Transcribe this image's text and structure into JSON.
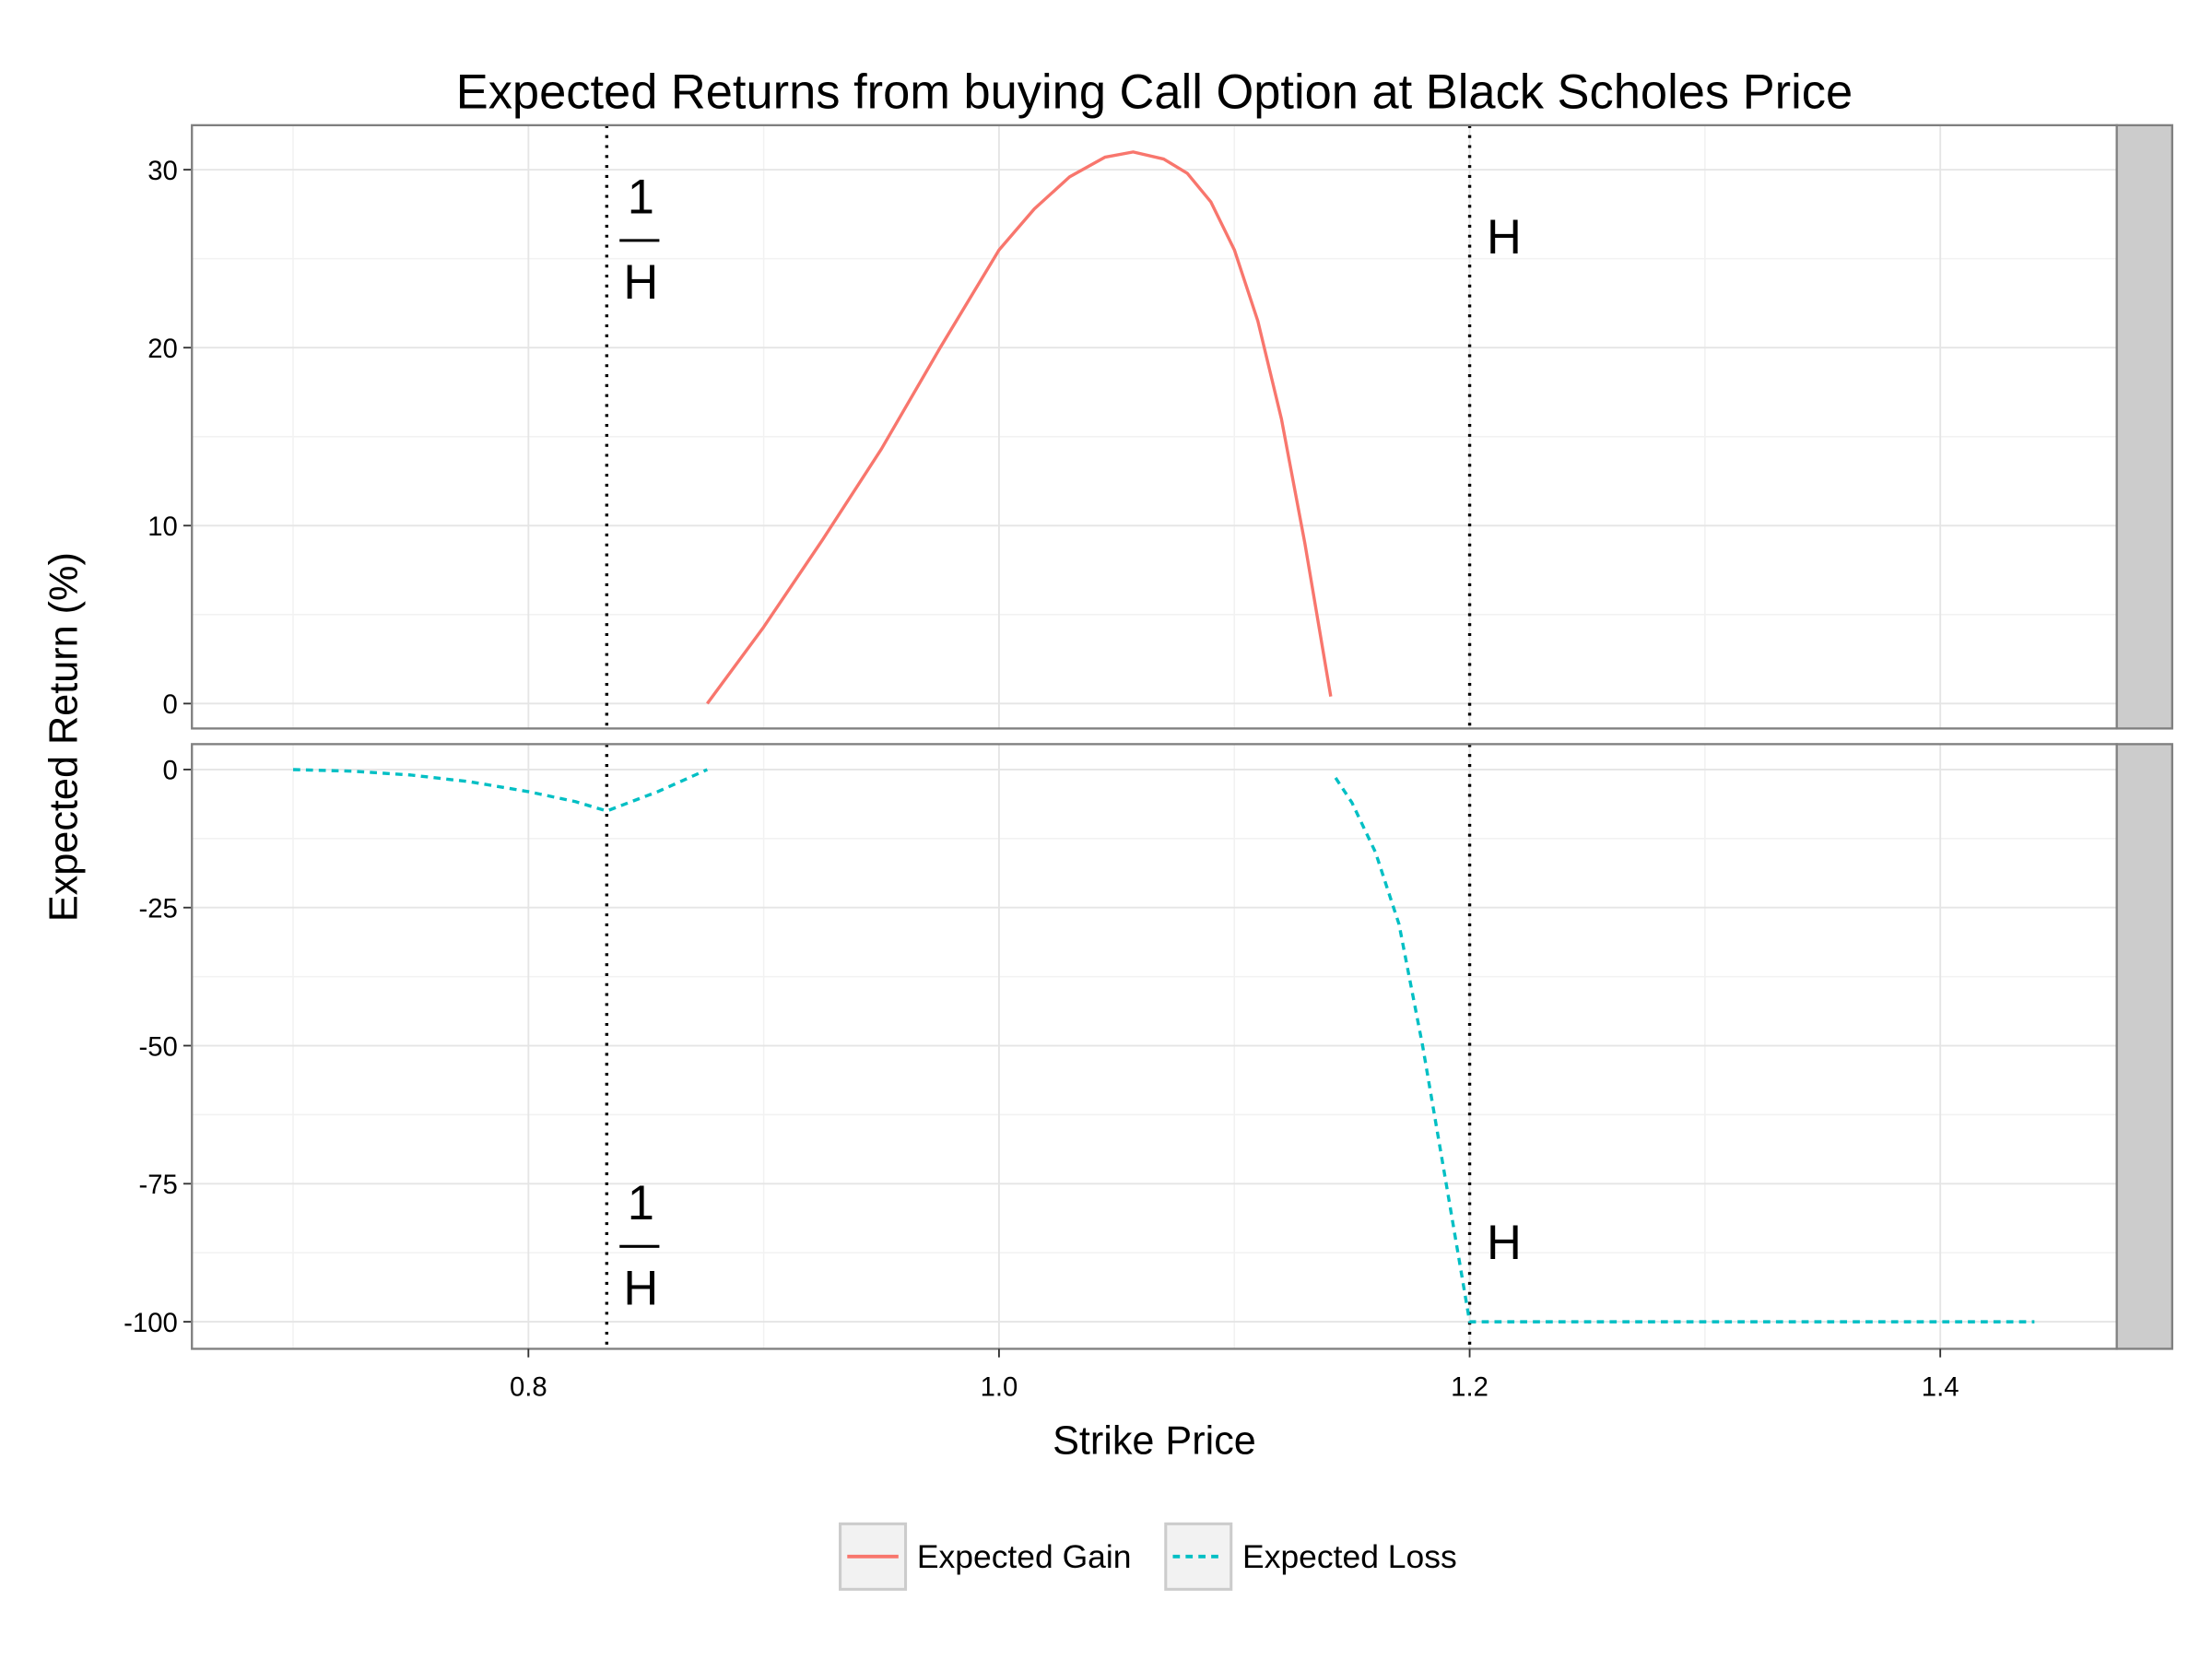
{
  "chart_data": {
    "type": "line",
    "title": "Expected Returns from buying Call Option at Black Scholes Price",
    "xlabel": "Strike Price",
    "ylabel": "Expected Return (%)",
    "xlim": [
      0.657,
      1.475
    ],
    "x_ticks": [
      "0.8",
      "1.0",
      "1.2",
      "1.4"
    ],
    "x_tick_values": [
      0.8,
      1.0,
      1.2,
      1.4
    ],
    "grid": true,
    "legend_position": "bottom",
    "panels": [
      {
        "ylim": [
          -1.4,
          32.5
        ],
        "y_ticks": [
          "0",
          "10",
          "20",
          "30"
        ],
        "y_tick_values": [
          0,
          10,
          20,
          30
        ],
        "series": [
          {
            "name": "Expected Gain",
            "color": "#F8766D",
            "dash": "solid",
            "points": [
              [
                0.876,
                0
              ],
              [
                0.9,
                4.3
              ],
              [
                0.925,
                9.2
              ],
              [
                0.95,
                14.3
              ],
              [
                0.975,
                20
              ],
              [
                1.0,
                25.5
              ],
              [
                1.015,
                27.8
              ],
              [
                1.03,
                29.6
              ],
              [
                1.045,
                30.7
              ],
              [
                1.057,
                31
              ],
              [
                1.07,
                30.6
              ],
              [
                1.08,
                29.8
              ],
              [
                1.09,
                28.2
              ],
              [
                1.1,
                25.5
              ],
              [
                1.11,
                21.5
              ],
              [
                1.12,
                16
              ],
              [
                1.13,
                9
              ],
              [
                1.141,
                0.4
              ]
            ]
          }
        ],
        "annotations": [
          {
            "x": 0.8333,
            "label_numerator": "1",
            "label_denominator": "H"
          },
          {
            "x": 1.2,
            "label": "H"
          }
        ]
      },
      {
        "ylim": [
          -104.9,
          4.6
        ],
        "y_ticks": [
          "0",
          "-25",
          "-50",
          "-75",
          "-100"
        ],
        "y_tick_values": [
          0,
          -25,
          -50,
          -75,
          -100
        ],
        "series": [
          {
            "name": "Expected Loss",
            "color": "#00BFC4",
            "dash": "dashed",
            "points": [
              [
                0.7,
                0
              ],
              [
                0.725,
                -0.3
              ],
              [
                0.75,
                -1
              ],
              [
                0.775,
                -2.2
              ],
              [
                0.8,
                -4
              ],
              [
                0.82,
                -5.8
              ],
              [
                0.8333,
                -7.5
              ],
              [
                0.855,
                -4
              ],
              [
                0.876,
                0
              ]
            ]
          },
          {
            "name": "Expected Loss",
            "color": "#00BFC4",
            "dash": "dashed",
            "points": [
              [
                1.143,
                -1.5
              ],
              [
                1.15,
                -6
              ],
              [
                1.16,
                -15
              ],
              [
                1.17,
                -28
              ],
              [
                1.18,
                -50
              ],
              [
                1.19,
                -75
              ],
              [
                1.2,
                -100
              ],
              [
                1.3,
                -100
              ],
              [
                1.44,
                -100
              ]
            ]
          }
        ],
        "annotations": [
          {
            "x": 0.8333,
            "label_numerator": "1",
            "label_denominator": "H"
          },
          {
            "x": 1.2,
            "label": "H"
          }
        ]
      }
    ],
    "vlines": [
      0.8333,
      1.2
    ],
    "legend": [
      {
        "name": "Expected Gain",
        "color": "#F8766D",
        "dash": "solid"
      },
      {
        "name": "Expected Loss",
        "color": "#00BFC4",
        "dash": "dashed"
      }
    ]
  }
}
